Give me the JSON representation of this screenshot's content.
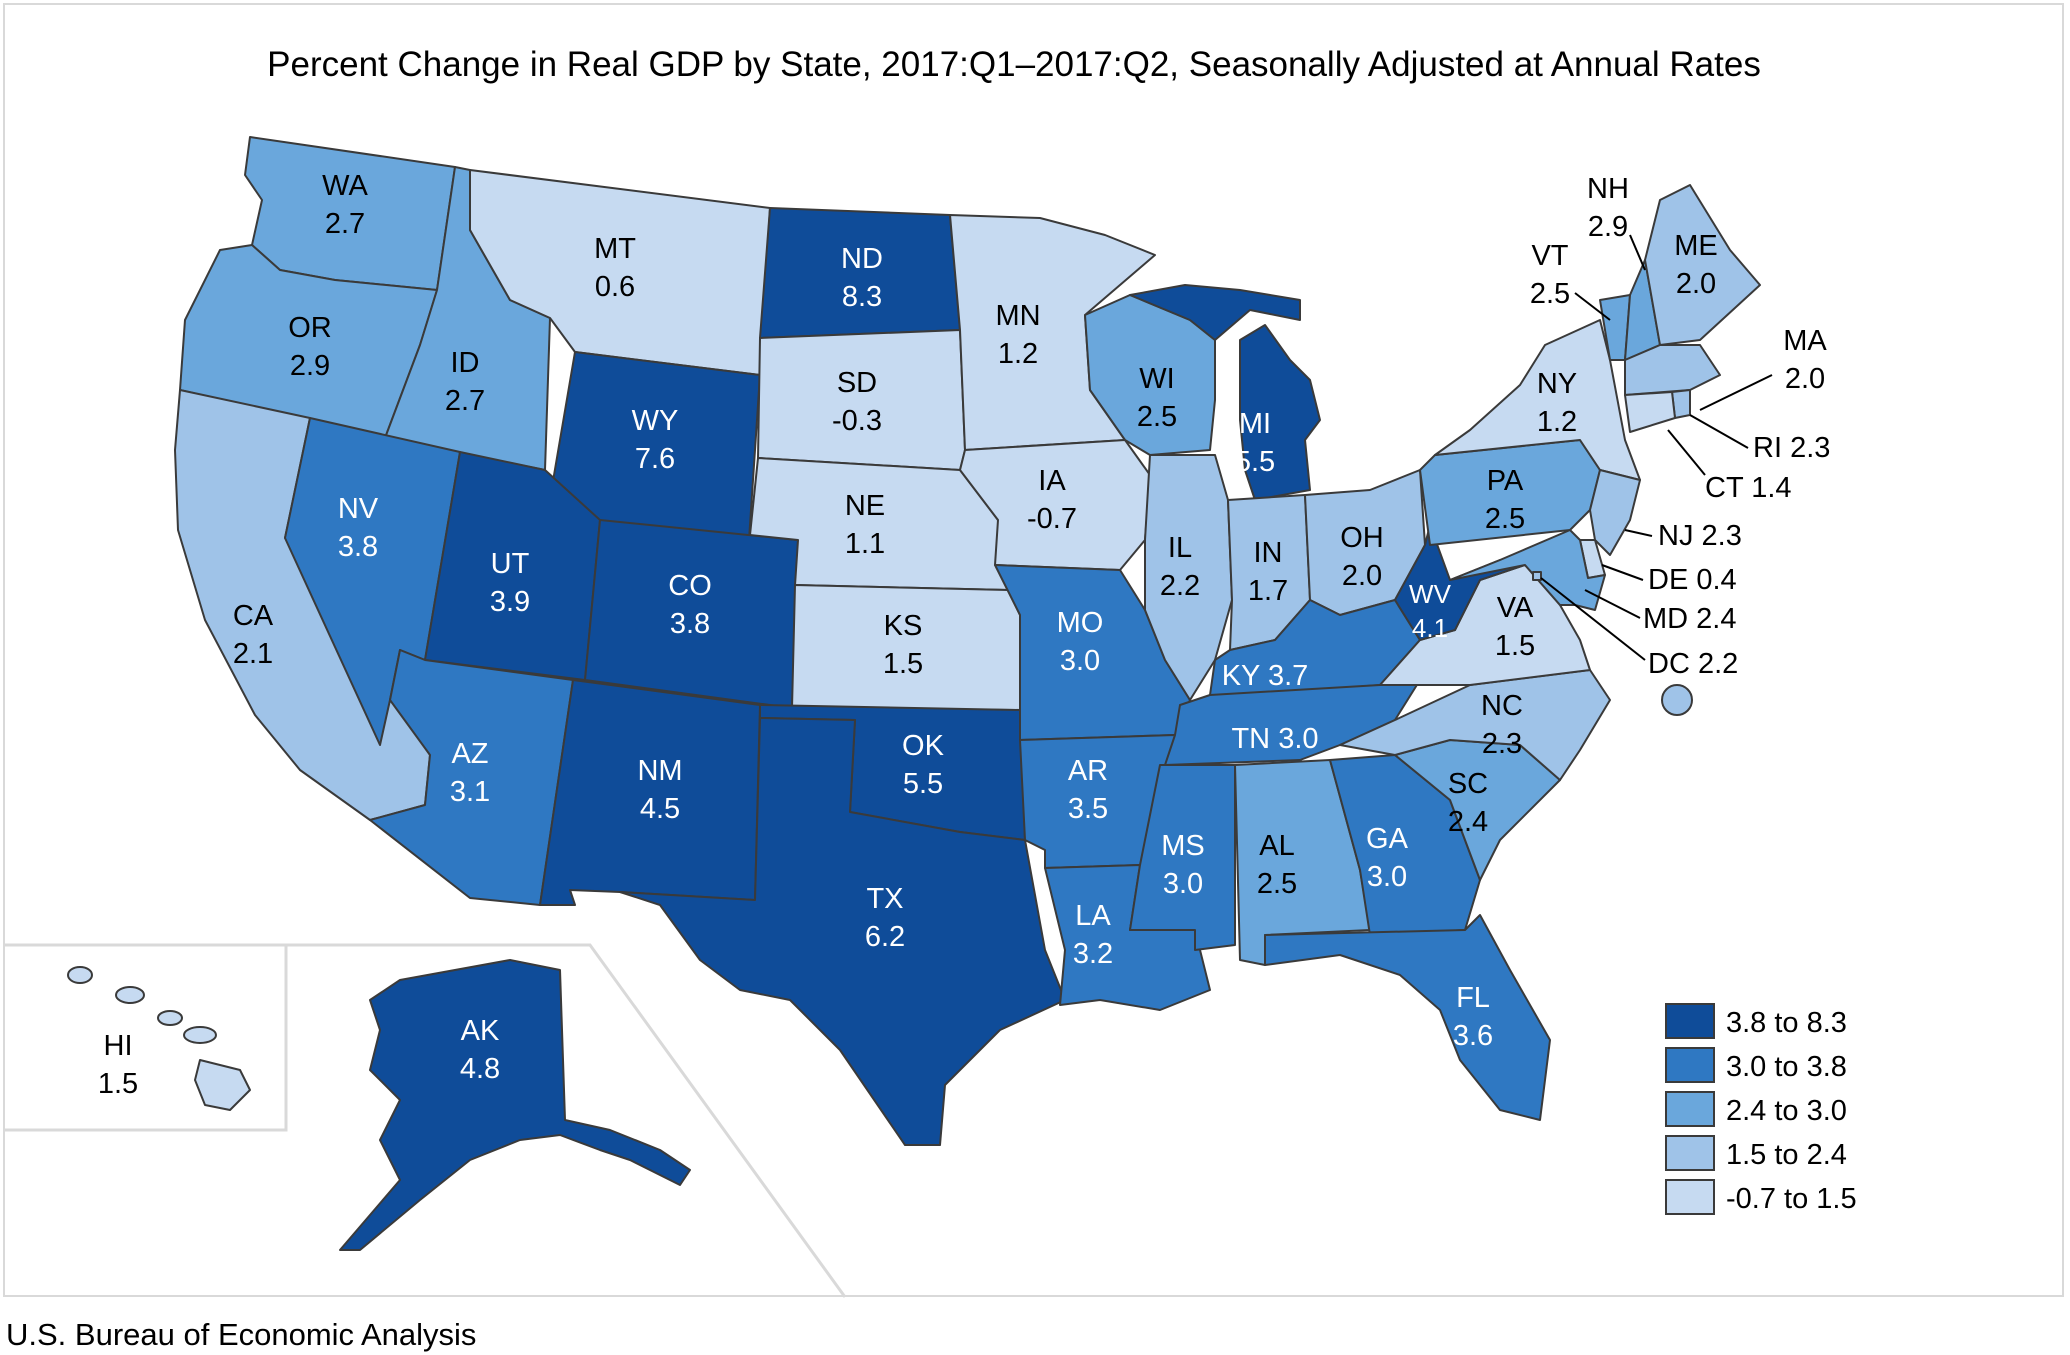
{
  "title": "Percent Change in Real GDP by State, 2017:Q1–2017:Q2, Seasonally Adjusted at Annual Rates",
  "footer": "U.S. Bureau of Economic Analysis",
  "colors": {
    "c1": "#0f4c99",
    "c2": "#2f78c2",
    "c3": "#6aa7dc",
    "c4": "#9fc3e8",
    "c5": "#c6daf1"
  },
  "legend": [
    {
      "label": "3.8 to 8.3",
      "color": "#0f4c99"
    },
    {
      "label": "3.0 to 3.8",
      "color": "#2f78c2"
    },
    {
      "label": "2.4 to 3.0",
      "color": "#6aa7dc"
    },
    {
      "label": "1.5 to 2.4",
      "color": "#9fc3e8"
    },
    {
      "label": "-0.7 to 1.5",
      "color": "#c6daf1"
    }
  ],
  "states": {
    "WA": {
      "abbr": "WA",
      "value": "2.7"
    },
    "OR": {
      "abbr": "OR",
      "value": "2.9"
    },
    "CA": {
      "abbr": "CA",
      "value": "2.1"
    },
    "ID": {
      "abbr": "ID",
      "value": "2.7"
    },
    "NV": {
      "abbr": "NV",
      "value": "3.8"
    },
    "MT": {
      "abbr": "MT",
      "value": "0.6"
    },
    "WY": {
      "abbr": "WY",
      "value": "7.6"
    },
    "UT": {
      "abbr": "UT",
      "value": "3.9"
    },
    "AZ": {
      "abbr": "AZ",
      "value": "3.1"
    },
    "CO": {
      "abbr": "CO",
      "value": "3.8"
    },
    "NM": {
      "abbr": "NM",
      "value": "4.5"
    },
    "ND": {
      "abbr": "ND",
      "value": "8.3"
    },
    "SD": {
      "abbr": "SD",
      "value": "-0.3"
    },
    "NE": {
      "abbr": "NE",
      "value": "1.1"
    },
    "KS": {
      "abbr": "KS",
      "value": "1.5"
    },
    "OK": {
      "abbr": "OK",
      "value": "5.5"
    },
    "TX": {
      "abbr": "TX",
      "value": "6.2"
    },
    "MN": {
      "abbr": "MN",
      "value": "1.2"
    },
    "IA": {
      "abbr": "IA",
      "value": "-0.7"
    },
    "MO": {
      "abbr": "MO",
      "value": "3.0"
    },
    "AR": {
      "abbr": "AR",
      "value": "3.5"
    },
    "LA": {
      "abbr": "LA",
      "value": "3.2"
    },
    "WI": {
      "abbr": "WI",
      "value": "2.5"
    },
    "IL": {
      "abbr": "IL",
      "value": "2.2"
    },
    "MI": {
      "abbr": "MI",
      "value": "5.5"
    },
    "IN": {
      "abbr": "IN",
      "value": "1.7"
    },
    "OH": {
      "abbr": "OH",
      "value": "2.0"
    },
    "KY": {
      "abbr": "KY",
      "value": "3.7"
    },
    "TN": {
      "abbr": "TN",
      "value": "3.0"
    },
    "MS": {
      "abbr": "MS",
      "value": "3.0"
    },
    "AL": {
      "abbr": "AL",
      "value": "2.5"
    },
    "GA": {
      "abbr": "GA",
      "value": "3.0"
    },
    "FL": {
      "abbr": "FL",
      "value": "3.6"
    },
    "SC": {
      "abbr": "SC",
      "value": "2.4"
    },
    "NC": {
      "abbr": "NC",
      "value": "2.3"
    },
    "VA": {
      "abbr": "VA",
      "value": "1.5"
    },
    "WV": {
      "abbr": "WV",
      "value": "4.1"
    },
    "PA": {
      "abbr": "PA",
      "value": "2.5"
    },
    "NY": {
      "abbr": "NY",
      "value": "1.2"
    },
    "VT": {
      "abbr": "VT",
      "value": "2.5"
    },
    "NH": {
      "abbr": "NH",
      "value": "2.9"
    },
    "ME": {
      "abbr": "ME",
      "value": "2.0"
    },
    "MA": {
      "abbr": "MA",
      "value": "2.0"
    },
    "RI": {
      "abbr": "RI",
      "value": "2.3"
    },
    "CT": {
      "abbr": "CT",
      "value": "1.4"
    },
    "NJ": {
      "abbr": "NJ",
      "value": "2.3"
    },
    "DE": {
      "abbr": "DE",
      "value": "0.4"
    },
    "MD": {
      "abbr": "MD",
      "value": "2.4"
    },
    "DC": {
      "abbr": "DC",
      "value": "2.2"
    },
    "AK": {
      "abbr": "AK",
      "value": "4.8"
    },
    "HI": {
      "abbr": "HI",
      "value": "1.5"
    }
  }
}
